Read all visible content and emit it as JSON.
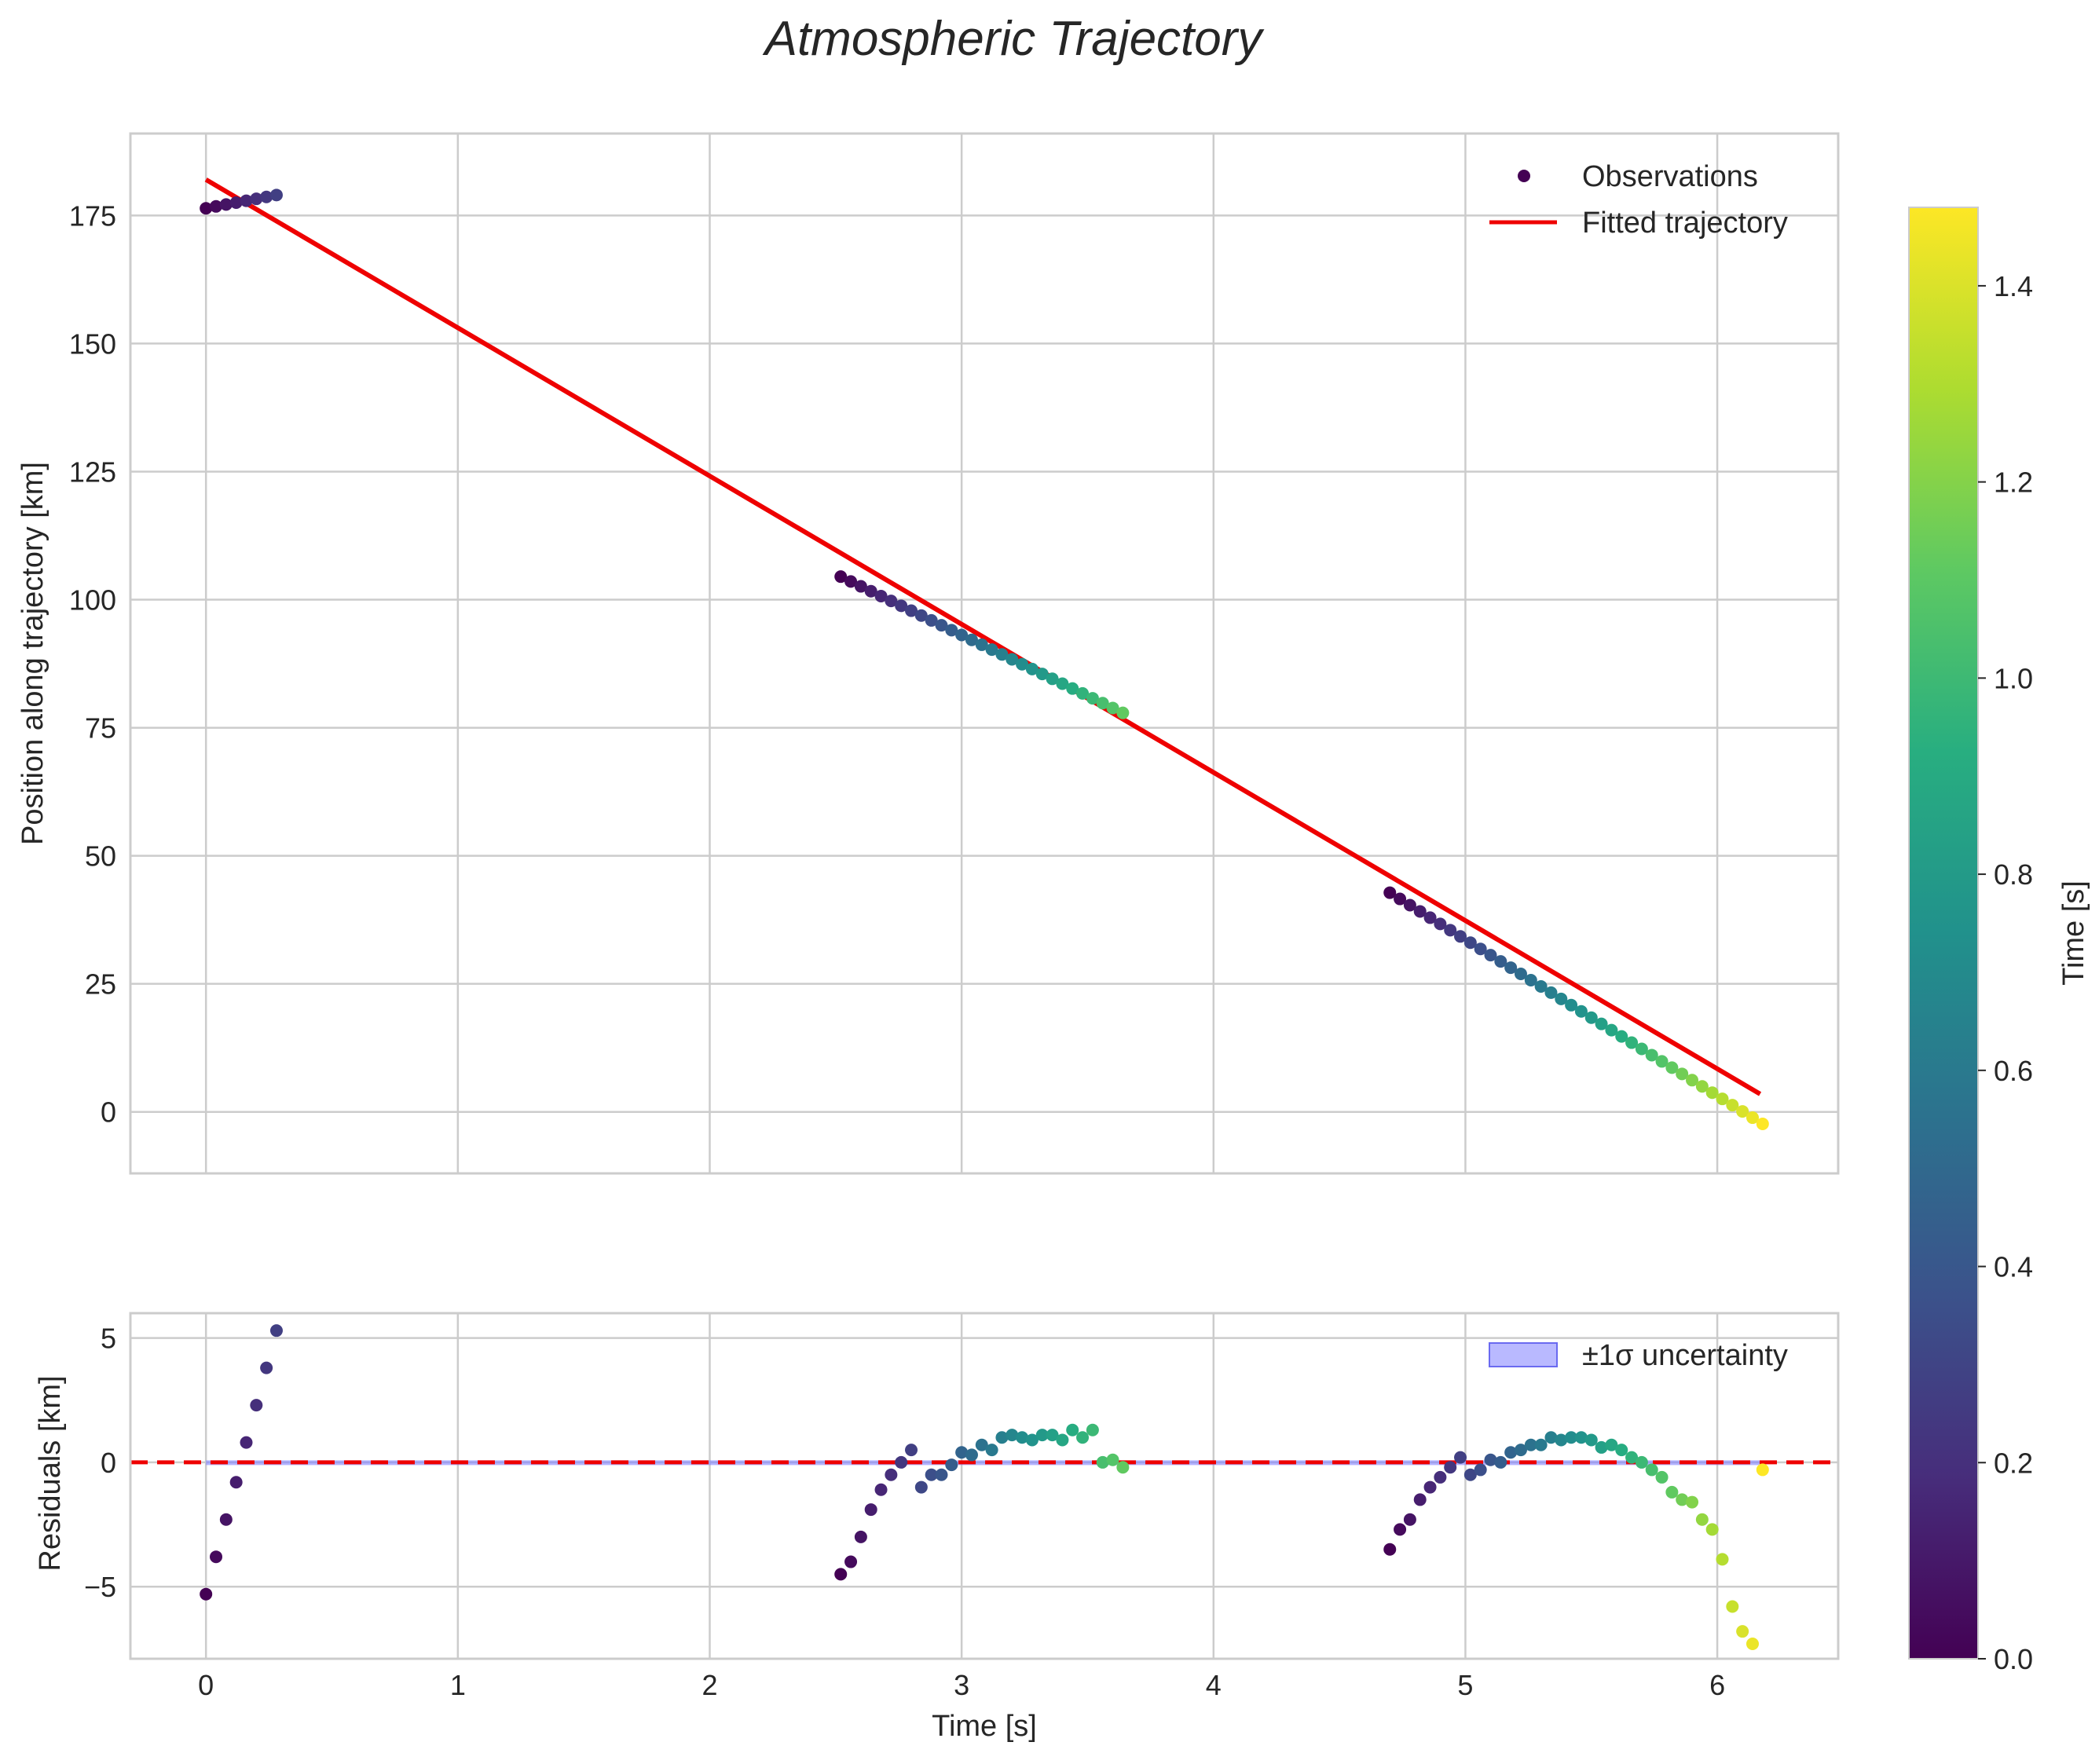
{
  "chart_data": {
    "type": "scatter",
    "title": "Atmospheric Trajectory",
    "colormap": "viridis",
    "colors": {
      "fit_line": "#ee0000",
      "zero_line": "#ee0000",
      "uncertainty": "#8080ff",
      "grid": "#cccccc"
    },
    "main": {
      "ylabel": "Position along trajectory [km]",
      "ylim": [
        -12,
        191
      ],
      "xlim": [
        -0.3,
        6.48
      ],
      "xticks": [
        0,
        1,
        2,
        3,
        4,
        5,
        6
      ],
      "yticks": [
        0,
        25,
        50,
        75,
        100,
        125,
        150,
        175
      ],
      "ytick_labels": [
        "0",
        "25",
        "50",
        "75",
        "100",
        "125",
        "150",
        "175"
      ],
      "legend": [
        "Observations",
        "Fitted trajectory"
      ],
      "fit_line": {
        "x": [
          0,
          6.17
        ],
        "y": [
          182,
          3.5
        ]
      }
    },
    "residuals": {
      "ylabel": "Residuals [km]",
      "xlabel": "Time [s]",
      "ylim": [
        -7.9,
        6.0
      ],
      "yticks": [
        -5,
        0,
        5
      ],
      "ytick_labels": [
        "−5",
        "0",
        "5"
      ],
      "xtick_labels": [
        "0",
        "1",
        "2",
        "3",
        "4",
        "5",
        "6"
      ],
      "legend": [
        "±1σ uncertainty"
      ],
      "uncertainty_band": {
        "x": [
          0,
          6.17
        ],
        "y": [
          -0.08,
          0.08
        ]
      }
    },
    "colorbar": {
      "label": "Time [s]",
      "range": [
        0,
        1.48
      ],
      "ticks": [
        0.0,
        0.2,
        0.4,
        0.6,
        0.8,
        1.0,
        1.2,
        1.4
      ],
      "tick_labels": [
        "0.0",
        "0.2",
        "0.4",
        "0.6",
        "0.8",
        "1.0",
        "1.2",
        "1.4"
      ]
    },
    "segments": [
      {
        "t_start": 0.0,
        "n": 8,
        "dt": 0.04,
        "pos_start": 176.4,
        "pos_step": 0.37,
        "residuals": [
          -5.3,
          -3.8,
          -2.3,
          -0.8,
          0.8,
          2.3,
          3.8,
          5.3
        ]
      },
      {
        "t_start": 2.52,
        "n": 29,
        "dt": 0.04,
        "pos_start": 104.5,
        "pos_step": -0.95,
        "residuals": [
          -4.5,
          -4.0,
          -3.0,
          -1.9,
          -1.1,
          -0.5,
          0.0,
          0.5,
          -1.0,
          -0.5,
          -0.5,
          -0.1,
          0.4,
          0.3,
          0.7,
          0.5,
          1.0,
          1.1,
          1.0,
          0.9,
          1.1,
          1.1,
          0.9,
          1.3,
          1.0,
          1.3,
          0.0,
          0.1,
          -0.2
        ]
      },
      {
        "t_start": 4.7,
        "n": 38,
        "dt": 0.04,
        "pos_start": 42.8,
        "pos_step": -1.22,
        "residuals": [
          -3.5,
          -2.7,
          -2.3,
          -1.5,
          -1.0,
          -0.6,
          -0.2,
          0.2,
          -0.5,
          -0.3,
          0.1,
          0.0,
          0.4,
          0.5,
          0.7,
          0.7,
          1.0,
          0.9,
          1.0,
          1.0,
          0.9,
          0.6,
          0.7,
          0.5,
          0.2,
          0.0,
          -0.3,
          -0.6,
          -1.2,
          -1.5,
          -1.6,
          -2.3,
          -2.7,
          -3.9,
          -5.8,
          -6.8,
          -7.3,
          -0.3
        ]
      }
    ]
  }
}
